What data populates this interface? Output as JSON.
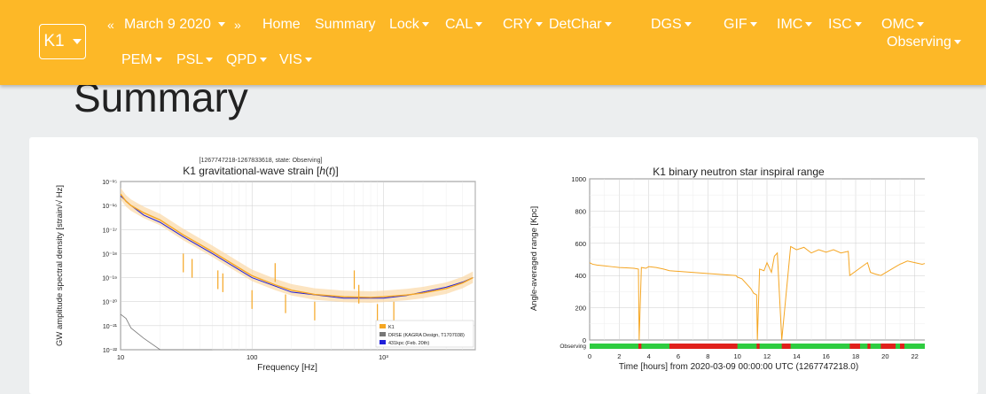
{
  "nav": {
    "ifo": "K1",
    "date_prev": "«",
    "date": "March 9 2020",
    "date_next": "»",
    "items_row1": [
      "Home",
      "Summary",
      "Lock",
      "CAL",
      "CRY",
      "DetChar",
      "DGS",
      "GIF",
      "IMC",
      "ISC",
      "OMC"
    ],
    "items_row2": [
      "PEM",
      "PSL",
      "QPD",
      "VIS"
    ],
    "state": "Observing"
  },
  "page_title": "Summary",
  "colors": {
    "navbar": "#fdb827",
    "k1_curve": "#f5a623",
    "observing": "#2ecc40",
    "not_observing": "#e0201b",
    "design": "#777777",
    "bns_431": "#1f1fd9"
  },
  "strain_plot": {
    "gps_label": "[1267747218-1267833618, state: Observing]",
    "title_prefix": "K1 gravitational-wave strain [",
    "title_italic_h": "h",
    "title_mid": "(",
    "title_italic_t": "t",
    "title_suffix": ")]",
    "ylabel": "GW amplitude spectral density [strain/√ Hz]",
    "xlabel": "Frequency [Hz]",
    "legend": [
      "K1",
      "DRSE (KAGRA Design, T1707038)",
      "431kpc (Feb. 20th)"
    ],
    "y_ticks": [
      "10⁻¹⁵",
      "10⁻¹⁶",
      "10⁻¹⁷",
      "10⁻¹⁸",
      "10⁻¹⁹",
      "10⁻²⁰",
      "10⁻²¹",
      "10⁻²²"
    ],
    "x_ticks": [
      "10",
      "100",
      "10³"
    ]
  },
  "range_plot": {
    "title": "K1 binary neutron star inspiral range",
    "ylabel": "Angle-averaged range [Kpc]",
    "xlabel": "Time [hours] from 2020-03-09 00:00:00 UTC (1267747218.0)",
    "segment_label": "Observing",
    "y_ticks": [
      "0",
      "200",
      "400",
      "600",
      "800",
      "1000"
    ],
    "x_ticks": [
      "0",
      "2",
      "4",
      "6",
      "8",
      "10",
      "12",
      "14",
      "16",
      "18",
      "20",
      "22",
      "24"
    ]
  },
  "chart_data": [
    {
      "type": "line",
      "title": "K1 gravitational-wave strain [h(t)]",
      "xlabel": "Frequency [Hz]",
      "ylabel": "GW amplitude spectral density [strain/√ Hz]",
      "xscale": "log",
      "yscale": "log",
      "xlim": [
        10,
        5000
      ],
      "ylim": [
        1e-22,
        1e-15
      ],
      "series": [
        {
          "name": "K1",
          "x": [
            10,
            11,
            12,
            15,
            20,
            30,
            50,
            80,
            100,
            150,
            200,
            300,
            500,
            800,
            1000,
            1500,
            2000,
            3000,
            4000,
            4800
          ],
          "y": [
            3e-16,
            1.5e-16,
            1e-16,
            5e-17,
            2.5e-17,
            6e-18,
            1.2e-18,
            2.5e-19,
            1.2e-19,
            5e-20,
            3e-20,
            2e-20,
            1.6e-20,
            1.5e-20,
            1.6e-20,
            1.9e-20,
            2.3e-20,
            3.5e-20,
            6e-20,
            1e-19
          ]
        },
        {
          "name": "DRSE (KAGRA Design, T1707038)",
          "x": [
            10,
            11,
            12,
            15,
            20,
            50
          ],
          "y": [
            3e-21,
            2e-21,
            8e-22,
            3e-22,
            1e-22,
            1e-22
          ]
        },
        {
          "name": "431kpc (Feb. 20th)",
          "x": [
            10,
            12,
            15,
            20,
            30,
            50,
            100,
            200,
            500,
            1000,
            1500,
            2000,
            3000,
            4000,
            4800
          ],
          "y": [
            2.5e-16,
            1e-16,
            4e-17,
            2e-17,
            5e-18,
            1e-18,
            1e-19,
            2.5e-20,
            1.4e-20,
            1.4e-20,
            1.8e-20,
            2.5e-20,
            4e-20,
            6.5e-20,
            1e-19
          ]
        }
      ]
    },
    {
      "type": "line",
      "title": "K1 binary neutron star inspiral range",
      "xlabel": "Time [hours] from 2020-03-09 00:00:00 UTC (1267747218.0)",
      "ylabel": "Angle-averaged range [Kpc]",
      "xlim": [
        0,
        24
      ],
      "ylim": [
        0,
        1000
      ],
      "segments_observing": [
        [
          0,
          3.3
        ],
        [
          3.5,
          5.4
        ],
        [
          10,
          11.3
        ],
        [
          11.5,
          13
        ],
        [
          13.6,
          17.6
        ],
        [
          18.3,
          18.8
        ],
        [
          19,
          19.7
        ],
        [
          20.7,
          21
        ],
        [
          21.3,
          22.9
        ],
        [
          23.1,
          23.4
        ]
      ],
      "series": [
        {
          "name": "",
          "x": [
            0,
            0.2,
            0.5,
            1,
            1.5,
            2,
            2.5,
            3,
            3.3,
            3.35,
            3.5,
            3.8,
            4,
            4.5,
            5,
            5.4,
            9.9,
            10,
            10.3,
            10.6,
            10.9,
            11.1,
            11.3,
            11.35,
            11.5,
            11.8,
            12,
            12.3,
            12.5,
            12.7,
            13,
            13.6,
            14,
            14.5,
            15,
            15.5,
            16,
            16.5,
            17,
            17.5,
            17.6,
            18.8,
            19,
            19.3,
            19.7,
            20.8,
            21,
            21.5,
            22,
            22.5,
            22.9,
            23,
            23.3
          ],
          "y": [
            480,
            470,
            465,
            460,
            455,
            450,
            448,
            445,
            440,
            0,
            450,
            445,
            455,
            450,
            440,
            430,
            400,
            390,
            380,
            350,
            320,
            290,
            280,
            0,
            440,
            430,
            480,
            420,
            520,
            540,
            0,
            580,
            560,
            575,
            540,
            560,
            545,
            560,
            540,
            550,
            400,
            480,
            420,
            410,
            400,
            460,
            470,
            490,
            480,
            470,
            480,
            0,
            470
          ]
        }
      ]
    }
  ]
}
